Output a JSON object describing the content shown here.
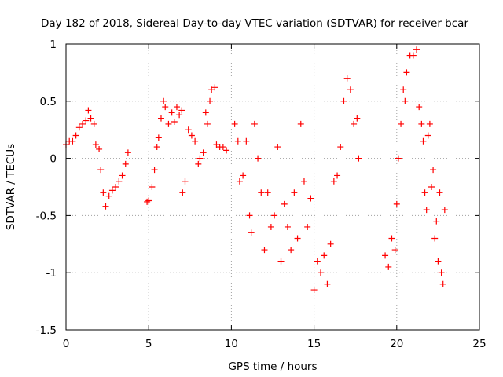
{
  "chart_data": {
    "type": "scatter",
    "title": "Day 182 of 2018, Sidereal Day-to-day VTEC variation (SDTVAR) for receiver bcar",
    "xlabel": "GPS time / hours",
    "ylabel": "SDTVAR / TECUs",
    "xlim": [
      0,
      25
    ],
    "ylim": [
      -1.5,
      1
    ],
    "xticks": [
      0,
      5,
      10,
      15,
      20,
      25
    ],
    "xtick_labels": [
      "0",
      "5",
      "10",
      "15",
      "20",
      "25"
    ],
    "yticks": [
      -1.5,
      -1,
      -0.5,
      0,
      0.5,
      1
    ],
    "ytick_labels": [
      "-1.5",
      "-1",
      "-0.5",
      "0",
      "0.5",
      "1"
    ],
    "grid": true,
    "marker": "+",
    "color": "#ff0000",
    "series": [
      {
        "name": "SDTVAR",
        "points": [
          [
            0.0,
            0.12
          ],
          [
            0.2,
            0.15
          ],
          [
            0.4,
            0.15
          ],
          [
            0.6,
            0.2
          ],
          [
            0.8,
            0.27
          ],
          [
            1.0,
            0.3
          ],
          [
            1.2,
            0.33
          ],
          [
            1.35,
            0.42
          ],
          [
            1.5,
            0.35
          ],
          [
            1.7,
            0.3
          ],
          [
            1.8,
            0.12
          ],
          [
            2.0,
            0.08
          ],
          [
            2.1,
            -0.1
          ],
          [
            2.25,
            -0.3
          ],
          [
            2.4,
            -0.42
          ],
          [
            2.6,
            -0.33
          ],
          [
            2.8,
            -0.28
          ],
          [
            3.0,
            -0.25
          ],
          [
            3.2,
            -0.2
          ],
          [
            3.4,
            -0.15
          ],
          [
            3.6,
            -0.05
          ],
          [
            3.75,
            0.05
          ],
          [
            4.9,
            -0.38
          ],
          [
            5.0,
            -0.37
          ],
          [
            5.2,
            -0.25
          ],
          [
            5.35,
            -0.1
          ],
          [
            5.5,
            0.1
          ],
          [
            5.6,
            0.18
          ],
          [
            5.75,
            0.35
          ],
          [
            5.9,
            0.5
          ],
          [
            6.0,
            0.45
          ],
          [
            6.2,
            0.3
          ],
          [
            6.4,
            0.4
          ],
          [
            6.55,
            0.32
          ],
          [
            6.7,
            0.45
          ],
          [
            6.85,
            0.38
          ],
          [
            7.0,
            0.42
          ],
          [
            7.05,
            -0.3
          ],
          [
            7.2,
            -0.2
          ],
          [
            7.4,
            0.25
          ],
          [
            7.6,
            0.2
          ],
          [
            7.8,
            0.15
          ],
          [
            8.0,
            -0.05
          ],
          [
            8.1,
            0.0
          ],
          [
            8.3,
            0.05
          ],
          [
            8.45,
            0.4
          ],
          [
            8.55,
            0.3
          ],
          [
            8.7,
            0.5
          ],
          [
            8.8,
            0.6
          ],
          [
            9.0,
            0.62
          ],
          [
            9.1,
            0.12
          ],
          [
            9.3,
            0.1
          ],
          [
            9.5,
            0.1
          ],
          [
            9.7,
            0.07
          ],
          [
            10.2,
            0.3
          ],
          [
            10.4,
            0.15
          ],
          [
            10.5,
            -0.2
          ],
          [
            10.7,
            -0.15
          ],
          [
            10.9,
            0.15
          ],
          [
            11.1,
            -0.5
          ],
          [
            11.2,
            -0.65
          ],
          [
            11.4,
            0.3
          ],
          [
            11.6,
            0.0
          ],
          [
            11.8,
            -0.3
          ],
          [
            12.0,
            -0.8
          ],
          [
            12.2,
            -0.3
          ],
          [
            12.4,
            -0.6
          ],
          [
            12.6,
            -0.5
          ],
          [
            12.8,
            0.1
          ],
          [
            13.0,
            -0.9
          ],
          [
            13.2,
            -0.4
          ],
          [
            13.4,
            -0.6
          ],
          [
            13.6,
            -0.8
          ],
          [
            13.8,
            -0.3
          ],
          [
            14.0,
            -0.7
          ],
          [
            14.2,
            0.3
          ],
          [
            14.4,
            -0.2
          ],
          [
            14.6,
            -0.6
          ],
          [
            14.8,
            -0.35
          ],
          [
            15.0,
            -1.15
          ],
          [
            15.2,
            -0.9
          ],
          [
            15.4,
            -1.0
          ],
          [
            15.6,
            -0.85
          ],
          [
            15.8,
            -1.1
          ],
          [
            16.0,
            -0.75
          ],
          [
            16.2,
            -0.2
          ],
          [
            16.4,
            -0.15
          ],
          [
            16.6,
            0.1
          ],
          [
            16.8,
            0.5
          ],
          [
            17.0,
            0.7
          ],
          [
            17.2,
            0.6
          ],
          [
            17.4,
            0.3
          ],
          [
            17.6,
            0.35
          ],
          [
            17.7,
            0.0
          ],
          [
            19.3,
            -0.85
          ],
          [
            19.5,
            -0.95
          ],
          [
            19.7,
            -0.7
          ],
          [
            19.9,
            -0.8
          ],
          [
            20.0,
            -0.4
          ],
          [
            20.1,
            0.0
          ],
          [
            20.25,
            0.3
          ],
          [
            20.4,
            0.6
          ],
          [
            20.5,
            0.5
          ],
          [
            20.6,
            0.75
          ],
          [
            20.8,
            0.9
          ],
          [
            21.0,
            0.9
          ],
          [
            21.2,
            0.95
          ],
          [
            21.35,
            0.45
          ],
          [
            21.5,
            0.3
          ],
          [
            21.6,
            0.15
          ],
          [
            21.7,
            -0.3
          ],
          [
            21.8,
            -0.45
          ],
          [
            21.9,
            0.2
          ],
          [
            22.0,
            0.3
          ],
          [
            22.1,
            -0.25
          ],
          [
            22.2,
            -0.1
          ],
          [
            22.3,
            -0.7
          ],
          [
            22.4,
            -0.55
          ],
          [
            22.5,
            -0.9
          ],
          [
            22.6,
            -0.3
          ],
          [
            22.7,
            -1.0
          ],
          [
            22.8,
            -1.1
          ],
          [
            22.9,
            -0.45
          ]
        ]
      }
    ]
  }
}
